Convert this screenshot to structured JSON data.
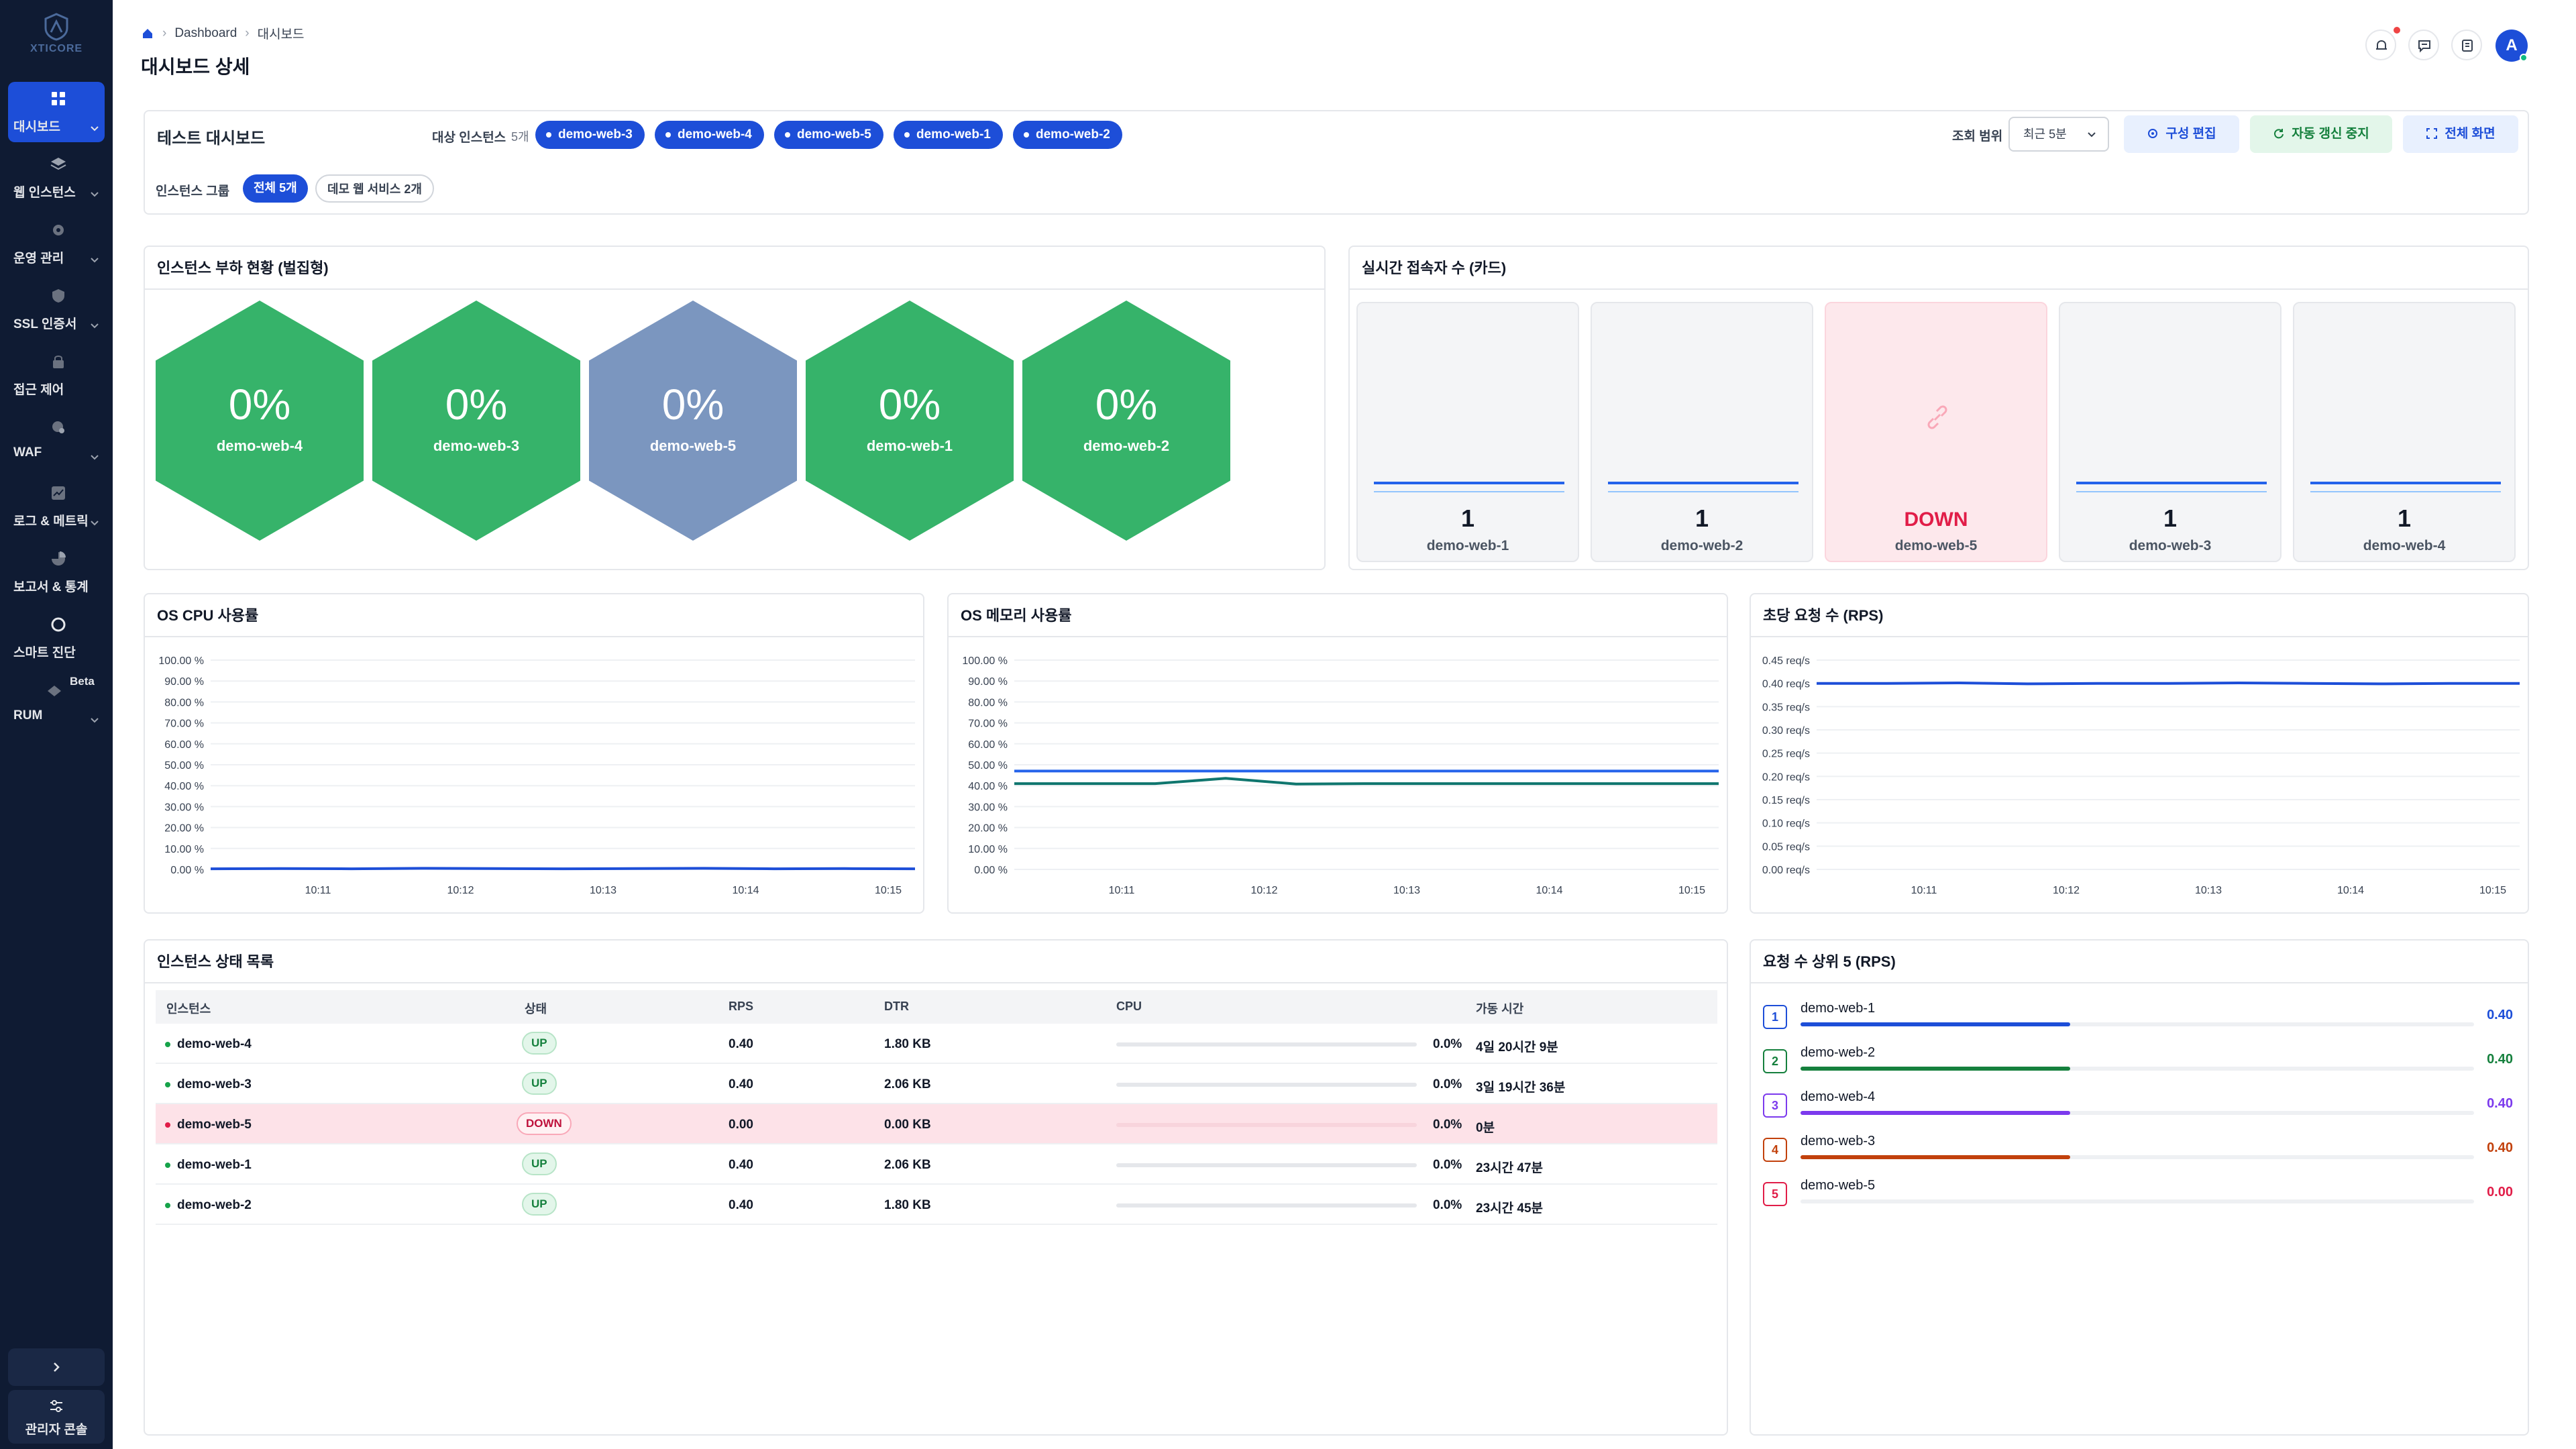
{
  "brand": {
    "name": "XTICORE"
  },
  "sidebar": {
    "items": [
      {
        "label": "대시보드",
        "icon": "dashboard-icon",
        "active": true
      },
      {
        "label": "웹 인스턴스",
        "icon": "layers-icon"
      },
      {
        "label": "운영 관리",
        "icon": "gear-icon"
      },
      {
        "label": "SSL 인증서",
        "icon": "shield-icon"
      },
      {
        "label": "접근 제어",
        "icon": "lock-icon"
      },
      {
        "label": "WAF",
        "icon": "firewall-icon"
      },
      {
        "label": "로그 & 메트릭",
        "icon": "metrics-icon"
      },
      {
        "label": "보고서 & 통계",
        "icon": "pie-icon"
      },
      {
        "label": "스마트 진단",
        "icon": "circle-icon"
      },
      {
        "label": "RUM",
        "icon": "rum-icon",
        "badge": "Beta"
      }
    ],
    "admin_label": "관리자 콘솔"
  },
  "header": {
    "breadcrumb": [
      "Dashboard",
      "대시보드"
    ],
    "title": "대시보드 상세"
  },
  "controls": {
    "dashboard_name": "테스트 대시보드",
    "target_label": "대상 인스턴스",
    "target_count": "5개",
    "chips": [
      "demo-web-3",
      "demo-web-4",
      "demo-web-5",
      "demo-web-1",
      "demo-web-2"
    ],
    "group_label": "인스턴스 그룹",
    "groups": [
      "전체 5개",
      "데모 웹 서비스 2개"
    ],
    "range_label": "조회 범위",
    "range_value": "최근 5분",
    "btn_config": "구성 편집",
    "btn_autorefresh": "자동 갱신 중지",
    "btn_fullscreen": "전체 화면"
  },
  "hex_panel": {
    "title": "인스턴스 부하 현황 (벌집형)",
    "items": [
      {
        "name": "demo-web-4",
        "value": "0%",
        "status": "up"
      },
      {
        "name": "demo-web-3",
        "value": "0%",
        "status": "up"
      },
      {
        "name": "demo-web-5",
        "value": "0%",
        "status": "down"
      },
      {
        "name": "demo-web-1",
        "value": "0%",
        "status": "up"
      },
      {
        "name": "demo-web-2",
        "value": "0%",
        "status": "up"
      }
    ]
  },
  "sessions_panel": {
    "title": "실시간 접속자 수 (카드)",
    "cards": [
      {
        "name": "demo-web-1",
        "value": "1"
      },
      {
        "name": "demo-web-2",
        "value": "1"
      },
      {
        "name": "demo-web-5",
        "value": "DOWN",
        "down": true
      },
      {
        "name": "demo-web-3",
        "value": "1"
      },
      {
        "name": "demo-web-4",
        "value": "1"
      }
    ]
  },
  "chart_data": [
    {
      "type": "line",
      "title": "OS CPU 사용률",
      "y_ticks": [
        "100.00 %",
        "90.00 %",
        "80.00 %",
        "70.00 %",
        "60.00 %",
        "50.00 %",
        "40.00 %",
        "30.00 %",
        "20.00 %",
        "10.00 %",
        "0.00 %"
      ],
      "x_ticks": [
        "10:11",
        "10:12",
        "10:13",
        "10:14",
        "10:15"
      ],
      "ylim": [
        0,
        100
      ],
      "series": [
        {
          "color": "#1d4ed8",
          "values": [
            0.3,
            0.4,
            0.3,
            0.5,
            0.4,
            0.3,
            0.4,
            0.5,
            0.3,
            0.4,
            0.3
          ]
        }
      ]
    },
    {
      "type": "line",
      "title": "OS 메모리 사용률",
      "y_ticks": [
        "100.00 %",
        "90.00 %",
        "80.00 %",
        "70.00 %",
        "60.00 %",
        "50.00 %",
        "40.00 %",
        "30.00 %",
        "20.00 %",
        "10.00 %",
        "0.00 %"
      ],
      "x_ticks": [
        "10:11",
        "10:12",
        "10:13",
        "10:14",
        "10:15"
      ],
      "ylim": [
        0,
        100
      ],
      "series": [
        {
          "color": "#2563eb",
          "values": [
            47,
            47,
            47,
            47,
            47,
            47,
            47,
            47,
            47,
            47,
            47
          ]
        },
        {
          "color": "#0f766e",
          "values": [
            41,
            41,
            41,
            43.5,
            40.8,
            41,
            41,
            41,
            41,
            41,
            41
          ]
        }
      ]
    },
    {
      "type": "line",
      "title": "초당 요청 수 (RPS)",
      "y_ticks": [
        "0.45 req/s",
        "0.40 req/s",
        "0.35 req/s",
        "0.30 req/s",
        "0.25 req/s",
        "0.20 req/s",
        "0.15 req/s",
        "0.10 req/s",
        "0.05 req/s",
        "0.00 req/s"
      ],
      "x_ticks": [
        "10:11",
        "10:12",
        "10:13",
        "10:14",
        "10:15"
      ],
      "ylim": [
        0,
        0.45
      ],
      "series": [
        {
          "color": "#1d4ed8",
          "values": [
            0.4,
            0.4,
            0.401,
            0.399,
            0.4,
            0.4,
            0.401,
            0.4,
            0.399,
            0.4,
            0.4
          ]
        }
      ]
    }
  ],
  "table": {
    "title": "인스턴스 상태 목록",
    "headers": [
      "인스턴스",
      "상태",
      "RPS",
      "DTR",
      "CPU",
      "가동 시간"
    ],
    "rows": [
      {
        "name": "demo-web-4",
        "status": "UP",
        "rps": "0.40",
        "dtr": "1.80 KB",
        "cpu": "0.0%",
        "uptime": "4일 20시간 9분"
      },
      {
        "name": "demo-web-3",
        "status": "UP",
        "rps": "0.40",
        "dtr": "2.06 KB",
        "cpu": "0.0%",
        "uptime": "3일 19시간 36분"
      },
      {
        "name": "demo-web-5",
        "status": "DOWN",
        "rps": "0.00",
        "dtr": "0.00 KB",
        "cpu": "0.0%",
        "uptime": "0분",
        "down": true
      },
      {
        "name": "demo-web-1",
        "status": "UP",
        "rps": "0.40",
        "dtr": "2.06 KB",
        "cpu": "0.0%",
        "uptime": "23시간 47분"
      },
      {
        "name": "demo-web-2",
        "status": "UP",
        "rps": "0.40",
        "dtr": "1.80 KB",
        "cpu": "0.0%",
        "uptime": "23시간 45분"
      }
    ]
  },
  "top5": {
    "title": "요청 수 상위 5 (RPS)",
    "items": [
      {
        "rank": "1",
        "name": "demo-web-1",
        "value": "0.40",
        "fill": 0.4,
        "color": "#1d4ed8"
      },
      {
        "rank": "2",
        "name": "demo-web-2",
        "value": "0.40",
        "fill": 0.4,
        "color": "#15803d"
      },
      {
        "rank": "3",
        "name": "demo-web-4",
        "value": "0.40",
        "fill": 0.4,
        "color": "#7c3aed"
      },
      {
        "rank": "4",
        "name": "demo-web-3",
        "value": "0.40",
        "fill": 0.4,
        "color": "#c2410c"
      },
      {
        "rank": "5",
        "name": "demo-web-5",
        "value": "0.00",
        "fill": 0,
        "color": "#e11d48"
      }
    ]
  }
}
